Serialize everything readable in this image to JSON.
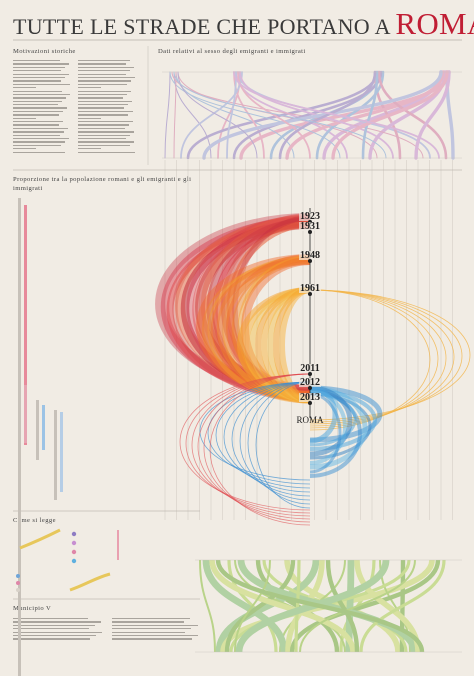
{
  "header": {
    "title_prefix": "TUTTE LE STRADE CHE PORTANO A",
    "title_city": "ROMA"
  },
  "sections": {
    "motivazioni": "Motivazioni storiche",
    "dati_sesso": "Dati relativi al sesso degli emigranti e immigrati",
    "proporzione": "Proporzione tra la popolazione romani e gli emigranti e gli immigrati",
    "come_si_legge": "Come si legge",
    "municipio": "Municipio V"
  },
  "timeline": {
    "years": [
      "1923",
      "1931",
      "1948",
      "1961",
      "2011",
      "2012",
      "2013"
    ],
    "center_label": "ROMA"
  },
  "colors": {
    "bg": "#f1ece4",
    "title_accent": "#c01e34",
    "red": "#d0283e",
    "orange": "#f5a22c",
    "blue": "#3c8fd2",
    "green": "#8cbf3f",
    "purple": "#8e7cc3",
    "pink": "#df86a8"
  }
}
